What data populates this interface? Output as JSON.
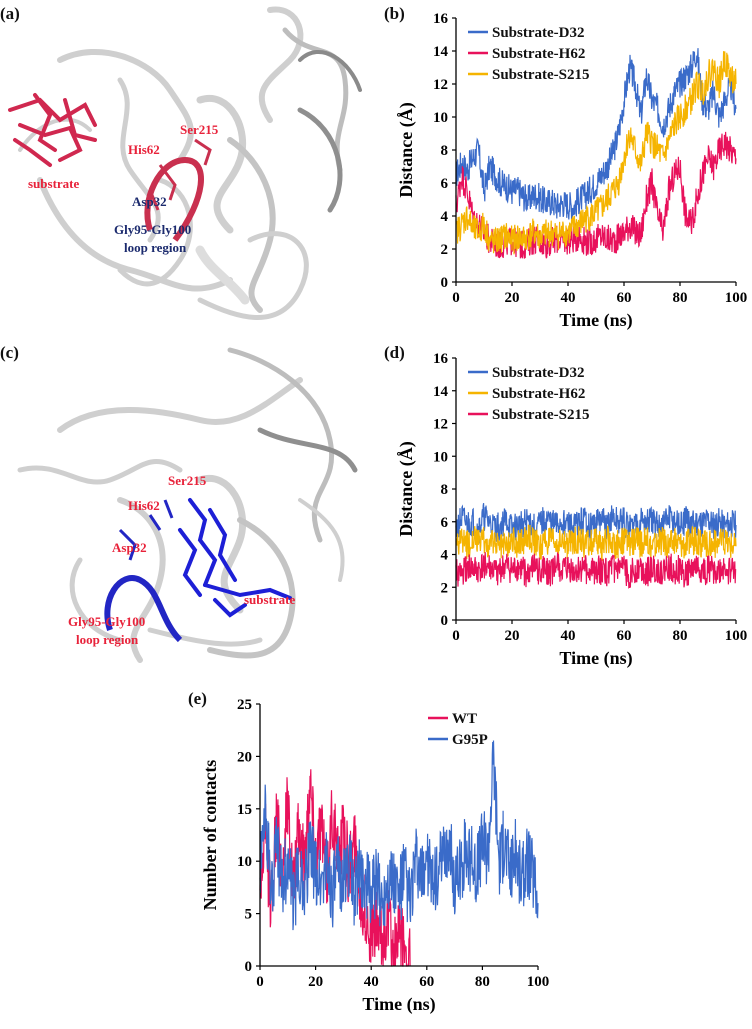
{
  "panels": {
    "a": {
      "letter": "(a)"
    },
    "b": {
      "letter": "(b)"
    },
    "c": {
      "letter": "(c)"
    },
    "d": {
      "letter": "(d)"
    },
    "e": {
      "letter": "(e)"
    }
  },
  "struct_a": {
    "labels": {
      "substrate": "substrate",
      "ser": "Ser215",
      "his": "His62",
      "asp": "Asp32",
      "loop1": "Gly95-Gly100",
      "loop2": "loop region"
    },
    "colors": {
      "ligand": "#d0284f",
      "ribbon": "#d8d8d8",
      "label_red": "#e8223a",
      "label_navy": "#1c2b6e"
    }
  },
  "struct_c": {
    "labels": {
      "substrate": "substrate",
      "ser": "Ser215",
      "his": "His62",
      "asp": "Asp32",
      "loop1": "Gly95-Gly100",
      "loop2": "loop region"
    },
    "colors": {
      "ligand": "#1d1fd6",
      "ribbon": "#d8d8d8",
      "label_red": "#e8223a"
    }
  },
  "chart_data": [
    {
      "id": "b",
      "type": "line",
      "xlabel": "Time (ns)",
      "ylabel": "Distance (Å)",
      "xlim": [
        0,
        100
      ],
      "ylim": [
        0,
        16
      ],
      "xticks": [
        0,
        20,
        40,
        60,
        80,
        100
      ],
      "yticks": [
        0,
        2,
        4,
        6,
        8,
        10,
        12,
        14,
        16
      ],
      "legend_position": "top-left",
      "series": [
        {
          "name": "Substrate-D32",
          "color": "#3a6bc9",
          "x": [
            0,
            2,
            4,
            6,
            8,
            10,
            12,
            14,
            16,
            18,
            20,
            22,
            24,
            26,
            28,
            30,
            32,
            34,
            36,
            38,
            40,
            42,
            44,
            46,
            48,
            50,
            52,
            54,
            56,
            58,
            60,
            62,
            64,
            66,
            68,
            70,
            72,
            74,
            76,
            78,
            80,
            82,
            84,
            86,
            88,
            90,
            92,
            94,
            96,
            98,
            100
          ],
          "y": [
            6.5,
            7.2,
            6.8,
            7.5,
            8.0,
            5.5,
            7.0,
            6.5,
            6.0,
            5.8,
            5.5,
            5.6,
            5.2,
            5.0,
            5.3,
            5.1,
            4.8,
            4.9,
            4.6,
            4.8,
            4.7,
            4.6,
            5.0,
            5.2,
            5.6,
            6.0,
            6.5,
            7.0,
            7.8,
            9.0,
            11.0,
            13.0,
            12.0,
            10.0,
            12.5,
            11.0,
            10.5,
            9.5,
            10.5,
            11.5,
            12.0,
            12.5,
            13.0,
            14.0,
            11.0,
            10.5,
            11.5,
            10.0,
            11.0,
            12.0,
            10.5
          ]
        },
        {
          "name": "Substrate-H62",
          "color": "#e8115b",
          "x": [
            0,
            2,
            4,
            6,
            8,
            10,
            12,
            14,
            16,
            18,
            20,
            22,
            24,
            26,
            28,
            30,
            32,
            34,
            36,
            38,
            40,
            42,
            44,
            46,
            48,
            50,
            52,
            54,
            56,
            58,
            60,
            62,
            64,
            66,
            68,
            70,
            72,
            74,
            76,
            78,
            80,
            82,
            84,
            86,
            88,
            90,
            92,
            94,
            96,
            98,
            100
          ],
          "y": [
            4.5,
            6.5,
            5.5,
            4.0,
            3.5,
            3.0,
            2.5,
            2.3,
            2.2,
            2.4,
            2.5,
            2.3,
            2.2,
            2.4,
            2.6,
            2.5,
            2.3,
            2.4,
            2.6,
            2.5,
            2.5,
            2.6,
            2.8,
            2.5,
            2.4,
            2.6,
            2.8,
            2.6,
            2.5,
            2.7,
            3.0,
            3.5,
            3.0,
            2.8,
            5.0,
            6.0,
            4.0,
            3.0,
            5.5,
            6.5,
            7.0,
            4.0,
            3.5,
            5.0,
            6.5,
            7.5,
            7.0,
            8.0,
            8.5,
            8.0,
            7.5
          ]
        },
        {
          "name": "Substrate-S215",
          "color": "#f5b400",
          "x": [
            0,
            2,
            4,
            6,
            8,
            10,
            12,
            14,
            16,
            18,
            20,
            22,
            24,
            26,
            28,
            30,
            32,
            34,
            36,
            38,
            40,
            42,
            44,
            46,
            48,
            50,
            52,
            54,
            56,
            58,
            60,
            62,
            64,
            66,
            68,
            70,
            72,
            74,
            76,
            78,
            80,
            82,
            84,
            86,
            88,
            90,
            92,
            94,
            96,
            98,
            100
          ],
          "y": [
            3.0,
            3.5,
            4.0,
            3.2,
            3.0,
            3.5,
            2.5,
            2.4,
            2.6,
            2.8,
            2.5,
            2.7,
            2.6,
            2.8,
            3.0,
            2.7,
            2.9,
            3.0,
            2.8,
            3.0,
            3.0,
            3.2,
            3.5,
            3.8,
            4.0,
            4.2,
            4.5,
            5.0,
            5.5,
            6.0,
            7.5,
            9.0,
            8.0,
            7.0,
            9.0,
            8.5,
            8.0,
            7.5,
            8.5,
            9.5,
            10.0,
            10.5,
            11.0,
            12.0,
            11.5,
            12.5,
            13.0,
            12.0,
            13.5,
            12.5,
            12.0
          ]
        }
      ]
    },
    {
      "id": "d",
      "type": "line",
      "xlabel": "Time (ns)",
      "ylabel": "Distance (Å)",
      "xlim": [
        0,
        100
      ],
      "ylim": [
        0,
        16
      ],
      "xticks": [
        0,
        20,
        40,
        60,
        80,
        100
      ],
      "yticks": [
        0,
        2,
        4,
        6,
        8,
        10,
        12,
        14,
        16
      ],
      "legend_position": "top-left",
      "series": [
        {
          "name": "Substrate-D32",
          "color": "#3a6bc9",
          "x": [
            0,
            2,
            4,
            6,
            8,
            10,
            12,
            14,
            16,
            18,
            20,
            22,
            24,
            26,
            28,
            30,
            32,
            34,
            36,
            38,
            40,
            42,
            44,
            46,
            48,
            50,
            52,
            54,
            56,
            58,
            60,
            62,
            64,
            66,
            68,
            70,
            72,
            74,
            76,
            78,
            80,
            82,
            84,
            86,
            88,
            90,
            92,
            94,
            96,
            98,
            100
          ],
          "y": [
            5.5,
            6.2,
            5.8,
            6.0,
            5.5,
            6.3,
            5.9,
            5.6,
            5.8,
            6.1,
            5.5,
            5.7,
            5.9,
            6.0,
            5.6,
            5.8,
            6.2,
            5.9,
            5.7,
            6.0,
            5.8,
            5.6,
            5.9,
            6.1,
            5.7,
            5.9,
            6.0,
            5.8,
            6.2,
            5.9,
            6.0,
            5.7,
            5.8,
            6.1,
            5.9,
            6.0,
            5.8,
            5.9,
            6.2,
            6.0,
            5.7,
            6.1,
            5.8,
            6.0,
            5.9,
            6.1,
            5.8,
            6.0,
            5.7,
            5.9,
            5.8
          ]
        },
        {
          "name": "Substrate-H62",
          "color": "#f5b400",
          "x": [
            0,
            2,
            4,
            6,
            8,
            10,
            12,
            14,
            16,
            18,
            20,
            22,
            24,
            26,
            28,
            30,
            32,
            34,
            36,
            38,
            40,
            42,
            44,
            46,
            48,
            50,
            52,
            54,
            56,
            58,
            60,
            62,
            64,
            66,
            68,
            70,
            72,
            74,
            76,
            78,
            80,
            82,
            84,
            86,
            88,
            90,
            92,
            94,
            96,
            98,
            100
          ],
          "y": [
            4.5,
            4.8,
            4.6,
            5.0,
            4.7,
            4.9,
            4.5,
            4.8,
            4.6,
            4.7,
            4.9,
            4.6,
            4.8,
            5.0,
            4.7,
            4.5,
            4.9,
            4.8,
            4.6,
            4.7,
            4.5,
            4.8,
            4.9,
            4.6,
            4.7,
            4.8,
            4.5,
            4.9,
            4.7,
            4.6,
            4.8,
            4.7,
            4.9,
            4.6,
            4.8,
            4.5,
            4.7,
            4.9,
            4.6,
            4.8,
            4.7,
            4.6,
            4.9,
            4.8,
            4.5,
            4.7,
            4.6,
            4.8,
            4.7,
            4.6,
            4.5
          ]
        },
        {
          "name": "Substrate-S215",
          "color": "#e8115b",
          "x": [
            0,
            2,
            4,
            6,
            8,
            10,
            12,
            14,
            16,
            18,
            20,
            22,
            24,
            26,
            28,
            30,
            32,
            34,
            36,
            38,
            40,
            42,
            44,
            46,
            48,
            50,
            52,
            54,
            56,
            58,
            60,
            62,
            64,
            66,
            68,
            70,
            72,
            74,
            76,
            78,
            80,
            82,
            84,
            86,
            88,
            90,
            92,
            94,
            96,
            98,
            100
          ],
          "y": [
            3.0,
            2.8,
            3.2,
            3.0,
            2.9,
            3.3,
            3.1,
            2.8,
            3.0,
            3.2,
            2.9,
            3.1,
            3.0,
            2.8,
            3.2,
            3.0,
            3.1,
            2.9,
            3.3,
            3.0,
            3.1,
            2.9,
            3.0,
            3.2,
            2.8,
            3.1,
            3.0,
            2.9,
            3.2,
            3.0,
            3.1,
            2.8,
            3.0,
            3.2,
            2.9,
            3.1,
            3.0,
            2.9,
            3.3,
            3.0,
            3.1,
            2.8,
            3.0,
            3.2,
            2.9,
            3.1,
            3.0,
            2.9,
            3.2,
            3.0,
            3.1
          ]
        }
      ]
    },
    {
      "id": "e",
      "type": "line",
      "xlabel": "Time (ns)",
      "ylabel": "Number of contacts",
      "xlim": [
        0,
        100
      ],
      "ylim": [
        0,
        25
      ],
      "xticks": [
        0,
        20,
        40,
        60,
        80,
        100
      ],
      "yticks": [
        0,
        5,
        10,
        15,
        20,
        25
      ],
      "legend_position": "top-right",
      "series": [
        {
          "name": "WT",
          "color": "#e8115b",
          "x": [
            0,
            2,
            4,
            6,
            8,
            10,
            12,
            14,
            16,
            18,
            20,
            22,
            24,
            26,
            28,
            30,
            32,
            34,
            36,
            38,
            40,
            42,
            44,
            46,
            48,
            50,
            52,
            54
          ],
          "y": [
            8,
            12,
            6,
            14,
            9,
            16,
            7,
            13,
            10,
            18,
            11,
            14,
            8,
            15,
            10,
            13,
            9,
            12,
            7,
            5,
            3,
            4,
            2,
            5,
            1,
            3,
            2,
            0
          ]
        },
        {
          "name": "G95P",
          "color": "#3a6bc9",
          "x": [
            0,
            2,
            4,
            6,
            8,
            10,
            12,
            14,
            16,
            18,
            20,
            22,
            24,
            26,
            28,
            30,
            32,
            34,
            36,
            38,
            40,
            42,
            44,
            46,
            48,
            50,
            52,
            54,
            56,
            58,
            60,
            62,
            64,
            66,
            68,
            70,
            72,
            74,
            76,
            78,
            80,
            82,
            84,
            86,
            88,
            90,
            92,
            94,
            96,
            98,
            100
          ],
          "y": [
            9,
            15,
            7,
            11,
            8,
            10,
            6,
            9,
            8,
            11,
            9,
            8,
            10,
            7,
            9,
            8,
            10,
            7,
            9,
            8,
            7,
            8,
            6,
            9,
            8,
            7,
            9,
            6,
            10,
            8,
            11,
            7,
            9,
            10,
            12,
            8,
            9,
            11,
            10,
            9,
            12,
            11,
            20,
            10,
            12,
            9,
            11,
            8,
            10,
            9,
            6
          ]
        }
      ]
    }
  ]
}
